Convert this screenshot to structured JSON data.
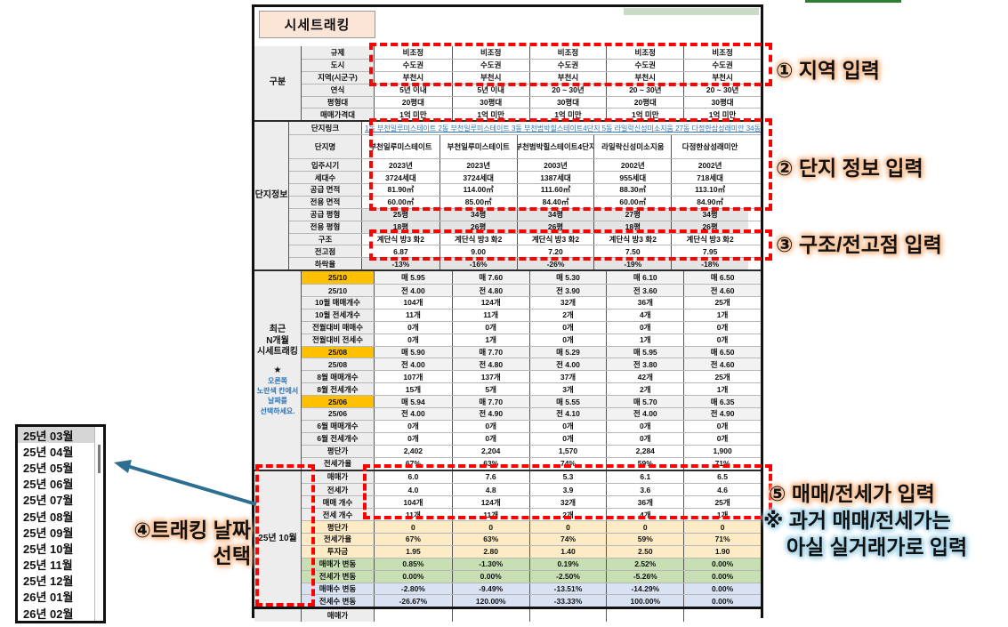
{
  "colors": {
    "accent_orange": "#FFC000",
    "yellow_row": "#FCEBC4",
    "green_row": "#C8DFB4",
    "blue_row": "#D9E2F3",
    "label_gray": "#EDEDED",
    "title_peach": "#FBE5D6",
    "link_blue": "#2E75B6",
    "dash_red": "#FF0000",
    "arrow_blue": "#2E6E91"
  },
  "annotations": {
    "note1": "① 지역 입력",
    "note2": "② 단지 정보 입력",
    "note3": "③ 구조/전고점 입력",
    "note4_line1": "④트래킹 날짜",
    "note4_line2": "선택",
    "note5a": "⑤ 매매/전세가 입력",
    "note5b": "※ 과거 매매/전세가는",
    "note5c": "아실 실거래가로 입력"
  },
  "dropdown": {
    "selected_index": 0,
    "items": [
      "25년 03월",
      "25년 04월",
      "25년 05월",
      "25년 06월",
      "25년 07월",
      "25년 08월",
      "25년 09월",
      "25년 10월",
      "25년 11월",
      "25년 12월",
      "26년 01월",
      "26년 02월"
    ]
  },
  "table": {
    "title": "시세트래킹",
    "sections": [
      {
        "id": "gubun",
        "label": "구분",
        "rows": [
          {
            "label": "규제",
            "cells": [
              "비조정",
              "비조정",
              "비조정",
              "비조정",
              "비조정"
            ]
          },
          {
            "label": "도시",
            "cells": [
              "수도권",
              "수도권",
              "수도권",
              "수도권",
              "수도권"
            ]
          },
          {
            "label": "지역(시군구)",
            "cells": [
              "부천시",
              "부천시",
              "부천시",
              "부천시",
              "부천시"
            ]
          },
          {
            "label": "연식",
            "cells": [
              "5년 이내",
              "5년 이내",
              "20 ~ 30년",
              "20 ~ 30년",
              "20 ~ 30년"
            ]
          },
          {
            "label": "평형대",
            "cells": [
              "20평대",
              "30평대",
              "30평대",
              "20평대",
              "30평대"
            ]
          },
          {
            "label": "매매가격대",
            "cells": [
              "1억 미만",
              "1억 미만",
              "1억 미만",
              "1억 미만",
              "1억 미만"
            ]
          }
        ]
      },
      {
        "id": "danji-info",
        "label": "단지정보",
        "rows": [
          {
            "label": "단지링크",
            "link_text": "1동 부천일루미스테이트 2동 부천일루미스테이트 3동 부천범박힐스테이트4단지 5동 라일락신성미소지움 27동 다정한삼성래미안 34동"
          },
          {
            "label": "단지명",
            "tall": true,
            "cells": [
              "부천일루미스테이트",
              "부천일루미스테이트",
              "부천범박힐스테이트4단지",
              "라일락신성미소지움",
              "다정한삼성래미안"
            ]
          },
          {
            "label": "입주시기",
            "cells": [
              "2023년",
              "2023년",
              "2003년",
              "2002년",
              "2002년"
            ]
          },
          {
            "label": "세대수",
            "cells": [
              "3724세대",
              "3724세대",
              "1387세대",
              "955세대",
              "718세대"
            ]
          },
          {
            "label": "공급 면적",
            "cells": [
              "81.90㎡",
              "114.00㎡",
              "111.60㎡",
              "88.30㎡",
              "113.10㎡"
            ]
          },
          {
            "label": "전용 면적",
            "cells": [
              "60.00㎡",
              "85.00㎡",
              "84.40㎡",
              "60.00㎡",
              "84.90㎡"
            ]
          },
          {
            "label": "공급 평형",
            "cell_style": "gray",
            "cells": [
              "25평",
              "34평",
              "34평",
              "27평",
              "34평"
            ]
          },
          {
            "label": "전용 평형",
            "cell_style": "gray",
            "cells": [
              "18평",
              "26평",
              "26평",
              "18평",
              "26평"
            ]
          },
          {
            "label": "구조",
            "cells": [
              "계단식 방3 화2",
              "계단식 방3 화2",
              "계단식 방3 화2",
              "계단식 방3 화2",
              "계단식 방3 화2"
            ]
          },
          {
            "label": "전고점",
            "cells": [
              "6.87",
              "9.00",
              "7.20",
              "7.50",
              "7.95"
            ]
          },
          {
            "label": "하락율",
            "cell_style": "gray",
            "cells": [
              "-13%",
              "-16%",
              "-26%",
              "-19%",
              "-18%"
            ]
          }
        ]
      },
      {
        "id": "recent-tracking",
        "label_lines": [
          "최근",
          "N개월",
          "시세트래킹"
        ],
        "star": "★",
        "note_lines": [
          "오른쪽",
          "노란색 칸에서",
          "날짜를",
          "선택하세요."
        ],
        "rows": [
          {
            "label": "25/10",
            "label_style": "orange",
            "cell_style": "lightgray",
            "cells": [
              "매 5.95",
              "매 7.60",
              "매 5.30",
              "매 6.10",
              "매 6.50"
            ]
          },
          {
            "label": "25/10",
            "cell_style": "lightgray",
            "cells": [
              "전 4.00",
              "전 4.80",
              "전 3.90",
              "전 3.60",
              "전 4.60"
            ]
          },
          {
            "label": "10월 매매개수",
            "cells": [
              "104개",
              "124개",
              "32개",
              "36개",
              "25개"
            ]
          },
          {
            "label": "10월 전세개수",
            "cells": [
              "11개",
              "11개",
              "2개",
              "4개",
              "1개"
            ]
          },
          {
            "label": "전월대비 매매수",
            "cells": [
              "0개",
              "0개",
              "0개",
              "0개",
              "0개"
            ]
          },
          {
            "label": "전월대비 전세수",
            "cells": [
              "0개",
              "1개",
              "0개",
              "1개",
              "0개"
            ]
          },
          {
            "label": "25/08",
            "label_style": "orange",
            "cell_style": "lightgray",
            "cells": [
              "매 5.90",
              "매 7.70",
              "매 5.29",
              "매 5.95",
              "매 6.50"
            ]
          },
          {
            "label": "25/08",
            "cell_style": "lightgray",
            "cells": [
              "전 4.00",
              "전 4.80",
              "전 4.00",
              "전 3.80",
              "전 4.60"
            ]
          },
          {
            "label": "8월 매매개수",
            "cells": [
              "107개",
              "137개",
              "37개",
              "42개",
              "25개"
            ]
          },
          {
            "label": "8월 전세개수",
            "cells": [
              "15개",
              "5개",
              "3개",
              "2개",
              "1개"
            ]
          },
          {
            "label": "25/06",
            "label_style": "orange",
            "cell_style": "lightgray",
            "cells": [
              "매 5.94",
              "매 7.70",
              "매 5.55",
              "매 5.70",
              "매 6.35"
            ]
          },
          {
            "label": "25/06",
            "cell_style": "lightgray",
            "cells": [
              "전 4.00",
              "전 4.90",
              "전 4.10",
              "전 4.00",
              "전 4.90"
            ]
          },
          {
            "label": "6월 매매개수",
            "cells": [
              "0개",
              "0개",
              "0개",
              "0개",
              "0개"
            ]
          },
          {
            "label": "6월 전세개수",
            "cells": [
              "0개",
              "0개",
              "0개",
              "0개",
              "0개"
            ]
          },
          {
            "label": "평단가",
            "cells": [
              "2,402",
              "2,204",
              "1,570",
              "2,284",
              "1,900"
            ]
          },
          {
            "label": "전세가율",
            "cells": [
              "67%",
              "63%",
              "74%",
              "59%",
              "71%"
            ]
          }
        ]
      },
      {
        "id": "month-2510",
        "label": "25년 10월",
        "rows": [
          {
            "label": "매매가",
            "cells": [
              "6.0",
              "7.6",
              "5.3",
              "6.1",
              "6.5"
            ]
          },
          {
            "label": "전세가",
            "cells": [
              "4.0",
              "4.8",
              "3.9",
              "3.6",
              "4.6"
            ]
          },
          {
            "label": "매매 개수",
            "cells": [
              "104개",
              "124개",
              "32개",
              "36개",
              "25개"
            ]
          },
          {
            "label": "전세 개수",
            "cells": [
              "11개",
              "11개",
              "2개",
              "4개",
              "1개"
            ]
          },
          {
            "label": "평단가",
            "label_style": "yellow",
            "cell_style": "yellow",
            "cells": [
              "0",
              "0",
              "0",
              "0",
              "0"
            ]
          },
          {
            "label": "전세가율",
            "label_style": "yellow",
            "cell_style": "yellow",
            "cells": [
              "67%",
              "63%",
              "74%",
              "59%",
              "71%"
            ]
          },
          {
            "label": "투자금",
            "label_style": "yellow",
            "cell_style": "yellow",
            "cells": [
              "1.95",
              "2.80",
              "1.40",
              "2.50",
              "1.90"
            ]
          },
          {
            "label": "매매가 변동",
            "label_style": "green",
            "cell_style": "green",
            "cells": [
              "0.85%",
              "-1.30%",
              "0.19%",
              "2.52%",
              "0.00%"
            ]
          },
          {
            "label": "전세가 변동",
            "label_style": "green",
            "cell_style": "green",
            "cells": [
              "0.00%",
              "0.00%",
              "-2.50%",
              "-5.26%",
              "0.00%"
            ]
          },
          {
            "label": "매매수 변동",
            "label_style": "blue",
            "cell_style": "blue",
            "cells": [
              "-2.80%",
              "-9.49%",
              "-13.51%",
              "-14.29%",
              "0.00%"
            ]
          },
          {
            "label": "전세수 변동",
            "label_style": "blue",
            "cell_style": "blue",
            "cells": [
              "-26.67%",
              "120.00%",
              "-33.33%",
              "100.00%",
              "0.00%"
            ]
          }
        ]
      },
      {
        "id": "next-month",
        "thick_top": true,
        "label": "",
        "rows": [
          {
            "label": "매매가",
            "cells": [
              "",
              "",
              "",
              "",
              ""
            ]
          }
        ]
      }
    ]
  }
}
